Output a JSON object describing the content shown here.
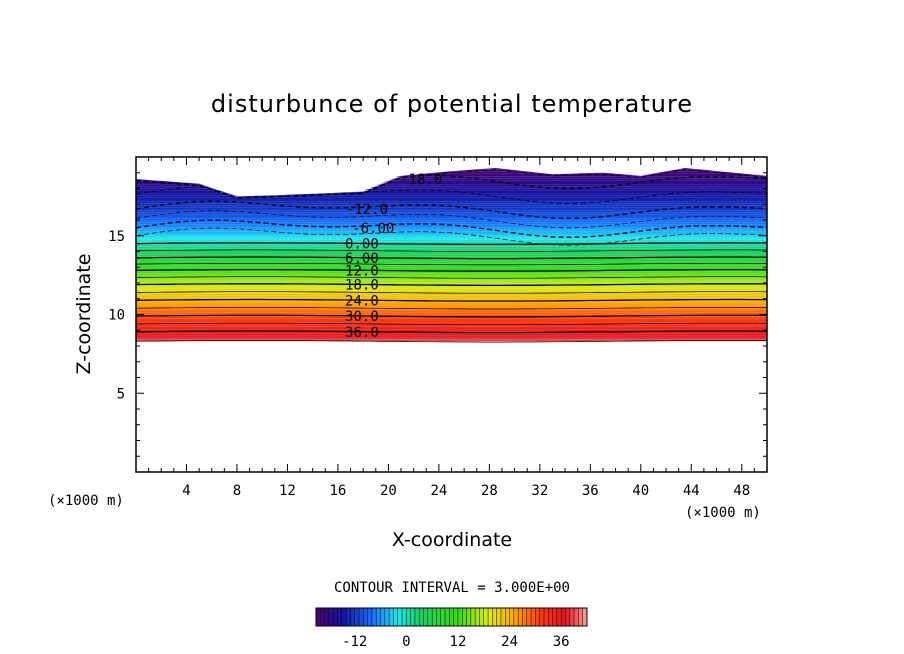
{
  "chart_data": {
    "type": "contour",
    "title": "disturbunce of potential temperature",
    "xlabel": "X-coordinate",
    "ylabel": "Z-coordinate",
    "x_unit": "(×1000 m)",
    "y_unit": "(×1000 m)",
    "xlim": [
      0,
      50
    ],
    "ylim": [
      0,
      20
    ],
    "x_ticks": [
      "4",
      "8",
      "12",
      "16",
      "20",
      "24",
      "28",
      "32",
      "36",
      "40",
      "44",
      "48"
    ],
    "y_ticks": [
      "5",
      "10",
      "15"
    ],
    "contour_interval_text": "CONTOUR INTERVAL = 3.000E+00",
    "field_bottom_z": 8.3,
    "field_top_z": [
      18.6,
      18.3,
      17.5,
      17.6,
      17.8,
      18.8,
      19.1,
      19.3,
      18.9,
      19.0,
      18.8,
      19.3,
      18.8
    ],
    "field_top_x": [
      0,
      5,
      8,
      12,
      18,
      21,
      25,
      28.5,
      33,
      37,
      40,
      43.5,
      50
    ],
    "contour_labels": [
      {
        "text": "-18.0",
        "x": 22.6,
        "z": 18.6
      },
      {
        "text": "-12.0",
        "x": 18.3,
        "z": 16.7
      },
      {
        "text": "-6.00",
        "x": 18.8,
        "z": 15.5
      },
      {
        "text": "0.00",
        "x": 17.9,
        "z": 14.5
      },
      {
        "text": "6.00",
        "x": 17.9,
        "z": 13.6
      },
      {
        "text": "12.0",
        "x": 17.9,
        "z": 12.8
      },
      {
        "text": "18.0",
        "x": 17.9,
        "z": 11.9
      },
      {
        "text": "24.0",
        "x": 17.9,
        "z": 10.9
      },
      {
        "text": "30.0",
        "x": 17.9,
        "z": 9.9
      },
      {
        "text": "36.0",
        "x": 17.9,
        "z": 8.9
      }
    ],
    "colorbar": {
      "min": -21,
      "max": 42,
      "ticks": [
        "-12",
        "0",
        "12",
        "24",
        "36"
      ]
    }
  }
}
